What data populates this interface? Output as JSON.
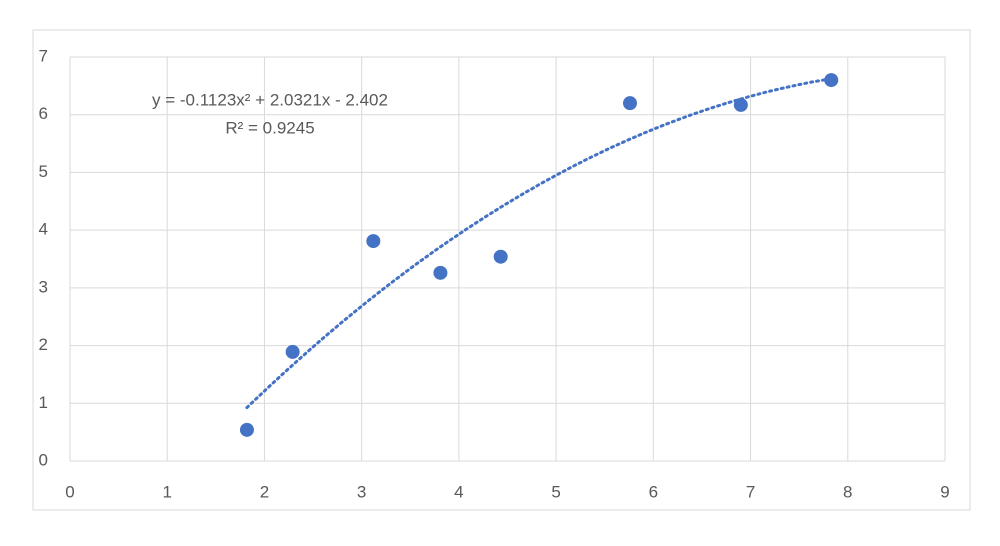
{
  "chart_data": {
    "type": "scatter",
    "x": [
      1.82,
      2.29,
      3.12,
      3.81,
      4.43,
      5.76,
      6.9,
      7.83
    ],
    "series": [
      {
        "color": "#4472c4",
        "values": [
          0.54,
          1.89,
          3.81,
          3.26,
          3.54,
          6.2,
          6.17,
          6.6
        ]
      }
    ],
    "xlim": [
      0,
      9
    ],
    "xticks": [
      0,
      1,
      2,
      3,
      4,
      5,
      6,
      7,
      8,
      9
    ],
    "ylim": [
      0,
      7
    ],
    "yticks": [
      0,
      1,
      2,
      3,
      4,
      5,
      6,
      7
    ],
    "grid": true,
    "trendline": {
      "type": "polynomial",
      "coefficients": [
        -0.1123,
        2.0321,
        -2.402
      ],
      "color": "#4472c4",
      "equation": "y = -0.1123x² + 2.0321x - 2.402",
      "r2_label": "R² = 0.9245"
    }
  }
}
